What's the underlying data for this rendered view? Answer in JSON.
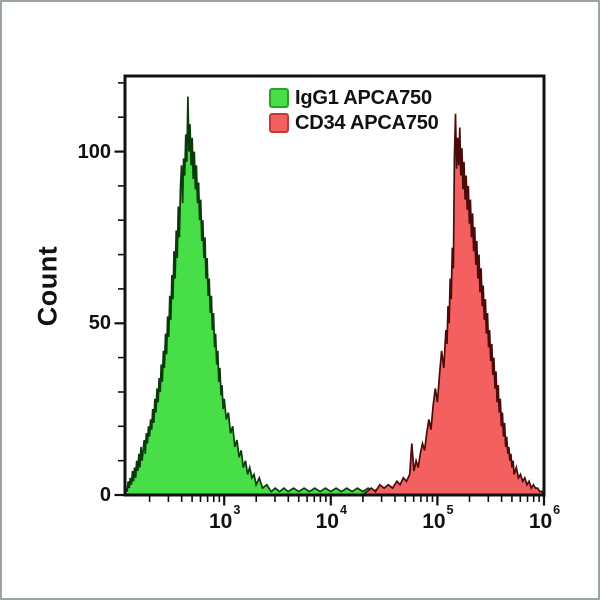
{
  "page": {
    "background": "#ffffff",
    "frame_border_color": "#9aa5a3"
  },
  "chart_data": {
    "type": "area",
    "subtype": "flow-cytometry-histogram",
    "title": "",
    "xlabel": "",
    "ylabel": "Count",
    "grid": "off",
    "x_axis": {
      "scale": "log10",
      "min_exp": 2.07,
      "max_exp": 6.0,
      "major_tick_exps": [
        3,
        4,
        5,
        6
      ],
      "minor_tick_multiples": [
        2,
        3,
        4,
        5,
        6,
        7,
        8,
        9
      ],
      "tick_label_base": "10"
    },
    "y_axis": {
      "min": 0,
      "max": 122,
      "major_ticks": [
        0,
        50,
        100
      ],
      "minor_tick_step": 10
    },
    "legend": {
      "position": "top-center"
    },
    "axis_color": "#111111",
    "series": [
      {
        "name": "IgG1 APCA750",
        "fill": "#47de47",
        "stroke": "#0a3a0a",
        "swatch_border": "#28a428",
        "peak_log_x": 2.66,
        "peak_count": 116,
        "points_log_x_count": [
          [
            2.07,
            0
          ],
          [
            2.08,
            2
          ],
          [
            2.09,
            1
          ],
          [
            2.1,
            4
          ],
          [
            2.11,
            2
          ],
          [
            2.12,
            5
          ],
          [
            2.13,
            3
          ],
          [
            2.14,
            7
          ],
          [
            2.15,
            4
          ],
          [
            2.16,
            8
          ],
          [
            2.17,
            5
          ],
          [
            2.18,
            10
          ],
          [
            2.19,
            7
          ],
          [
            2.2,
            12
          ],
          [
            2.21,
            8
          ],
          [
            2.22,
            14
          ],
          [
            2.23,
            10
          ],
          [
            2.24,
            13
          ],
          [
            2.25,
            16
          ],
          [
            2.26,
            12
          ],
          [
            2.27,
            18
          ],
          [
            2.28,
            15
          ],
          [
            2.29,
            20
          ],
          [
            2.3,
            17
          ],
          [
            2.31,
            22
          ],
          [
            2.32,
            19
          ],
          [
            2.33,
            25
          ],
          [
            2.34,
            21
          ],
          [
            2.35,
            28
          ],
          [
            2.36,
            24
          ],
          [
            2.37,
            31
          ],
          [
            2.38,
            27
          ],
          [
            2.39,
            34
          ],
          [
            2.4,
            30
          ],
          [
            2.41,
            38
          ],
          [
            2.42,
            33
          ],
          [
            2.43,
            42
          ],
          [
            2.44,
            37
          ],
          [
            2.45,
            47
          ],
          [
            2.46,
            41
          ],
          [
            2.47,
            52
          ],
          [
            2.48,
            46
          ],
          [
            2.49,
            58
          ],
          [
            2.5,
            51
          ],
          [
            2.51,
            64
          ],
          [
            2.52,
            57
          ],
          [
            2.53,
            71
          ],
          [
            2.54,
            63
          ],
          [
            2.55,
            77
          ],
          [
            2.56,
            69
          ],
          [
            2.57,
            84
          ],
          [
            2.58,
            75
          ],
          [
            2.59,
            89
          ],
          [
            2.6,
            96
          ],
          [
            2.61,
            85
          ],
          [
            2.62,
            98
          ],
          [
            2.63,
            93
          ],
          [
            2.64,
            105
          ],
          [
            2.65,
            97
          ],
          [
            2.66,
            116
          ],
          [
            2.67,
            100
          ],
          [
            2.68,
            108
          ],
          [
            2.69,
            96
          ],
          [
            2.7,
            104
          ],
          [
            2.71,
            92
          ],
          [
            2.72,
            100
          ],
          [
            2.73,
            89
          ],
          [
            2.74,
            96
          ],
          [
            2.75,
            85
          ],
          [
            2.76,
            91
          ],
          [
            2.77,
            80
          ],
          [
            2.78,
            86
          ],
          [
            2.79,
            74
          ],
          [
            2.8,
            80
          ],
          [
            2.81,
            69
          ],
          [
            2.82,
            75
          ],
          [
            2.83,
            63
          ],
          [
            2.84,
            69
          ],
          [
            2.85,
            58
          ],
          [
            2.86,
            63
          ],
          [
            2.87,
            53
          ],
          [
            2.88,
            58
          ],
          [
            2.89,
            48
          ],
          [
            2.9,
            53
          ],
          [
            2.91,
            43
          ],
          [
            2.92,
            47
          ],
          [
            2.93,
            38
          ],
          [
            2.94,
            42
          ],
          [
            2.95,
            33
          ],
          [
            2.96,
            37
          ],
          [
            2.97,
            29
          ],
          [
            2.98,
            32
          ],
          [
            2.99,
            25
          ],
          [
            3.0,
            28
          ],
          [
            3.02,
            22
          ],
          [
            3.04,
            24
          ],
          [
            3.06,
            18
          ],
          [
            3.08,
            20
          ],
          [
            3.1,
            14
          ],
          [
            3.12,
            16
          ],
          [
            3.14,
            11
          ],
          [
            3.16,
            13
          ],
          [
            3.18,
            8
          ],
          [
            3.2,
            10
          ],
          [
            3.22,
            6
          ],
          [
            3.24,
            8
          ],
          [
            3.26,
            5
          ],
          [
            3.28,
            6
          ],
          [
            3.3,
            3
          ],
          [
            3.33,
            5
          ],
          [
            3.36,
            2
          ],
          [
            3.4,
            3
          ],
          [
            3.44,
            1
          ],
          [
            3.48,
            2
          ],
          [
            3.52,
            1
          ],
          [
            3.56,
            2
          ],
          [
            3.6,
            1
          ],
          [
            3.65,
            2
          ],
          [
            3.7,
            1
          ],
          [
            3.75,
            2
          ],
          [
            3.8,
            1
          ],
          [
            3.85,
            2
          ],
          [
            3.9,
            1
          ],
          [
            3.95,
            2
          ],
          [
            4.0,
            1
          ],
          [
            4.05,
            2
          ],
          [
            4.1,
            1
          ],
          [
            4.15,
            2
          ],
          [
            4.2,
            1
          ],
          [
            4.25,
            2
          ],
          [
            4.3,
            1
          ],
          [
            4.35,
            2
          ],
          [
            4.4,
            1
          ],
          [
            4.45,
            2
          ],
          [
            4.5,
            1
          ],
          [
            4.6,
            2
          ],
          [
            4.7,
            1
          ],
          [
            4.8,
            1
          ],
          [
            4.9,
            2
          ],
          [
            5.0,
            1
          ],
          [
            5.1,
            1
          ],
          [
            5.2,
            1
          ],
          [
            5.3,
            1
          ],
          [
            5.4,
            1
          ],
          [
            5.5,
            1
          ],
          [
            5.6,
            1
          ],
          [
            5.7,
            2
          ],
          [
            5.75,
            1
          ],
          [
            5.8,
            2
          ],
          [
            5.85,
            1
          ],
          [
            5.9,
            2
          ],
          [
            5.95,
            1
          ],
          [
            6.0,
            1
          ]
        ]
      },
      {
        "name": "CD34 APCA750",
        "fill": "#f4605f",
        "stroke": "#4a0b0b",
        "swatch_border": "#c03a3a",
        "peak_log_x": 5.17,
        "peak_count": 111,
        "points_log_x_count": [
          [
            4.3,
            0
          ],
          [
            4.34,
            1
          ],
          [
            4.38,
            2
          ],
          [
            4.42,
            1
          ],
          [
            4.46,
            3
          ],
          [
            4.5,
            2
          ],
          [
            4.54,
            3
          ],
          [
            4.58,
            2
          ],
          [
            4.62,
            4
          ],
          [
            4.65,
            3
          ],
          [
            4.68,
            5
          ],
          [
            4.71,
            4
          ],
          [
            4.74,
            6
          ],
          [
            4.76,
            15
          ],
          [
            4.78,
            7
          ],
          [
            4.8,
            10
          ],
          [
            4.82,
            8
          ],
          [
            4.84,
            12
          ],
          [
            4.86,
            15
          ],
          [
            4.88,
            13
          ],
          [
            4.9,
            18
          ],
          [
            4.92,
            22
          ],
          [
            4.94,
            19
          ],
          [
            4.96,
            26
          ],
          [
            4.98,
            31
          ],
          [
            5.0,
            27
          ],
          [
            5.02,
            35
          ],
          [
            5.04,
            42
          ],
          [
            5.06,
            37
          ],
          [
            5.08,
            48
          ],
          [
            5.09,
            44
          ],
          [
            5.1,
            55
          ],
          [
            5.11,
            50
          ],
          [
            5.12,
            63
          ],
          [
            5.13,
            57
          ],
          [
            5.14,
            72
          ],
          [
            5.15,
            66
          ],
          [
            5.16,
            98
          ],
          [
            5.17,
            111
          ],
          [
            5.18,
            95
          ],
          [
            5.19,
            104
          ],
          [
            5.2,
            96
          ],
          [
            5.21,
            107
          ],
          [
            5.22,
            93
          ],
          [
            5.23,
            101
          ],
          [
            5.24,
            89
          ],
          [
            5.25,
            97
          ],
          [
            5.26,
            86
          ],
          [
            5.27,
            93
          ],
          [
            5.28,
            83
          ],
          [
            5.29,
            90
          ],
          [
            5.3,
            79
          ],
          [
            5.31,
            86
          ],
          [
            5.32,
            75
          ],
          [
            5.33,
            82
          ],
          [
            5.34,
            71
          ],
          [
            5.35,
            78
          ],
          [
            5.36,
            67
          ],
          [
            5.37,
            74
          ],
          [
            5.38,
            63
          ],
          [
            5.39,
            70
          ],
          [
            5.4,
            59
          ],
          [
            5.41,
            66
          ],
          [
            5.42,
            55
          ],
          [
            5.43,
            61
          ],
          [
            5.44,
            51
          ],
          [
            5.45,
            57
          ],
          [
            5.46,
            47
          ],
          [
            5.47,
            53
          ],
          [
            5.48,
            43
          ],
          [
            5.49,
            48
          ],
          [
            5.5,
            39
          ],
          [
            5.51,
            44
          ],
          [
            5.52,
            35
          ],
          [
            5.53,
            40
          ],
          [
            5.54,
            31
          ],
          [
            5.55,
            36
          ],
          [
            5.56,
            27
          ],
          [
            5.57,
            32
          ],
          [
            5.58,
            24
          ],
          [
            5.59,
            28
          ],
          [
            5.6,
            20
          ],
          [
            5.61,
            24
          ],
          [
            5.62,
            17
          ],
          [
            5.63,
            21
          ],
          [
            5.64,
            14
          ],
          [
            5.65,
            17
          ],
          [
            5.66,
            12
          ],
          [
            5.67,
            14
          ],
          [
            5.68,
            10
          ],
          [
            5.69,
            12
          ],
          [
            5.7,
            8
          ],
          [
            5.71,
            10
          ],
          [
            5.72,
            6
          ],
          [
            5.74,
            8
          ],
          [
            5.76,
            5
          ],
          [
            5.78,
            6
          ],
          [
            5.8,
            4
          ],
          [
            5.82,
            5
          ],
          [
            5.84,
            3
          ],
          [
            5.86,
            4
          ],
          [
            5.88,
            2
          ],
          [
            5.9,
            3
          ],
          [
            5.92,
            2
          ],
          [
            5.94,
            2
          ],
          [
            5.96,
            1
          ],
          [
            5.98,
            1
          ],
          [
            6.0,
            0
          ]
        ]
      }
    ]
  }
}
